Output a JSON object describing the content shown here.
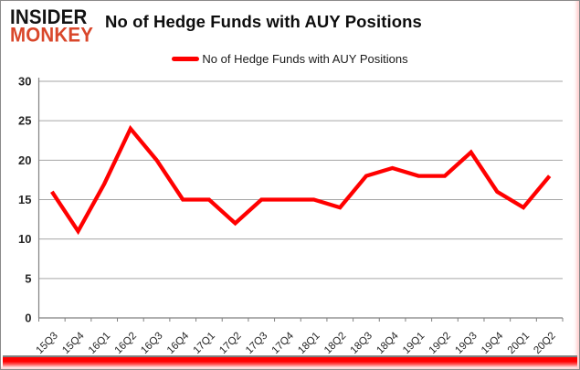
{
  "logo": {
    "line1": "INSIDER",
    "line2": "MONKEY"
  },
  "header": {
    "title": "No of Hedge Funds with AUY Positions"
  },
  "legend": {
    "label": "No of Hedge Funds with AUY Positions",
    "marker_color": "#ff0000"
  },
  "colors": {
    "series_line": "#ff0000",
    "gridline": "#a6a6a6",
    "axis": "#808080",
    "tick_label": "#262626",
    "logo_accent": "#d9472b",
    "brand_bar": "#ff0000"
  },
  "chart_data": {
    "type": "line",
    "title": "No of Hedge Funds with AUY Positions",
    "series_name": "No of Hedge Funds with AUY Positions",
    "categories": [
      "15Q3",
      "15Q4",
      "16Q1",
      "16Q2",
      "16Q3",
      "16Q4",
      "17Q1",
      "17Q2",
      "17Q3",
      "17Q4",
      "18Q1",
      "18Q2",
      "18Q3",
      "18Q4",
      "19Q1",
      "19Q2",
      "19Q3",
      "19Q4",
      "20Q1",
      "20Q2"
    ],
    "values": [
      16,
      11,
      17,
      24,
      20,
      15,
      15,
      12,
      15,
      15,
      15,
      14,
      18,
      19,
      18,
      18,
      21,
      16,
      14,
      18
    ],
    "xlabel": "",
    "ylabel": "",
    "ylim": [
      0,
      30
    ],
    "ytick_step": 5,
    "yticks": [
      0,
      5,
      10,
      15,
      20,
      25,
      30
    ],
    "grid": true,
    "legend_position": "top",
    "line_width": 4.3
  }
}
